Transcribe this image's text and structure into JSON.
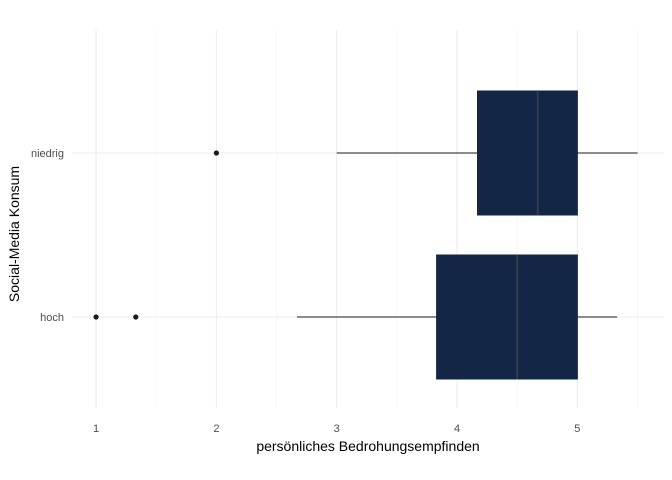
{
  "chart_data": {
    "type": "boxplot",
    "orientation": "horizontal",
    "title": "",
    "xlabel": "persönliches Bedrohungsempfinden",
    "ylabel": "Social-Media Konsum",
    "xlim": [
      0.8,
      5.72
    ],
    "x_ticks": [
      1,
      2,
      3,
      4,
      5
    ],
    "grid": true,
    "legend": "none",
    "categories": [
      "niedrig",
      "hoch"
    ],
    "series": [
      {
        "category": "niedrig",
        "whisker_low": 3.0,
        "q1": 4.17,
        "median": 4.67,
        "q3": 5.0,
        "whisker_high": 5.5,
        "outliers": [
          2.0
        ]
      },
      {
        "category": "hoch",
        "whisker_low": 2.67,
        "q1": 3.83,
        "median": 4.5,
        "q3": 5.0,
        "whisker_high": 5.33,
        "outliers": [
          1.0,
          1.33
        ]
      }
    ],
    "colors": {
      "box_fill": "#132646",
      "median_line": "#3a3f44",
      "whisker": "#1a1a1a",
      "outlier": "#1a1a1a",
      "grid_major": "#ebebeb",
      "grid_minor": "#f3f3f3"
    }
  }
}
